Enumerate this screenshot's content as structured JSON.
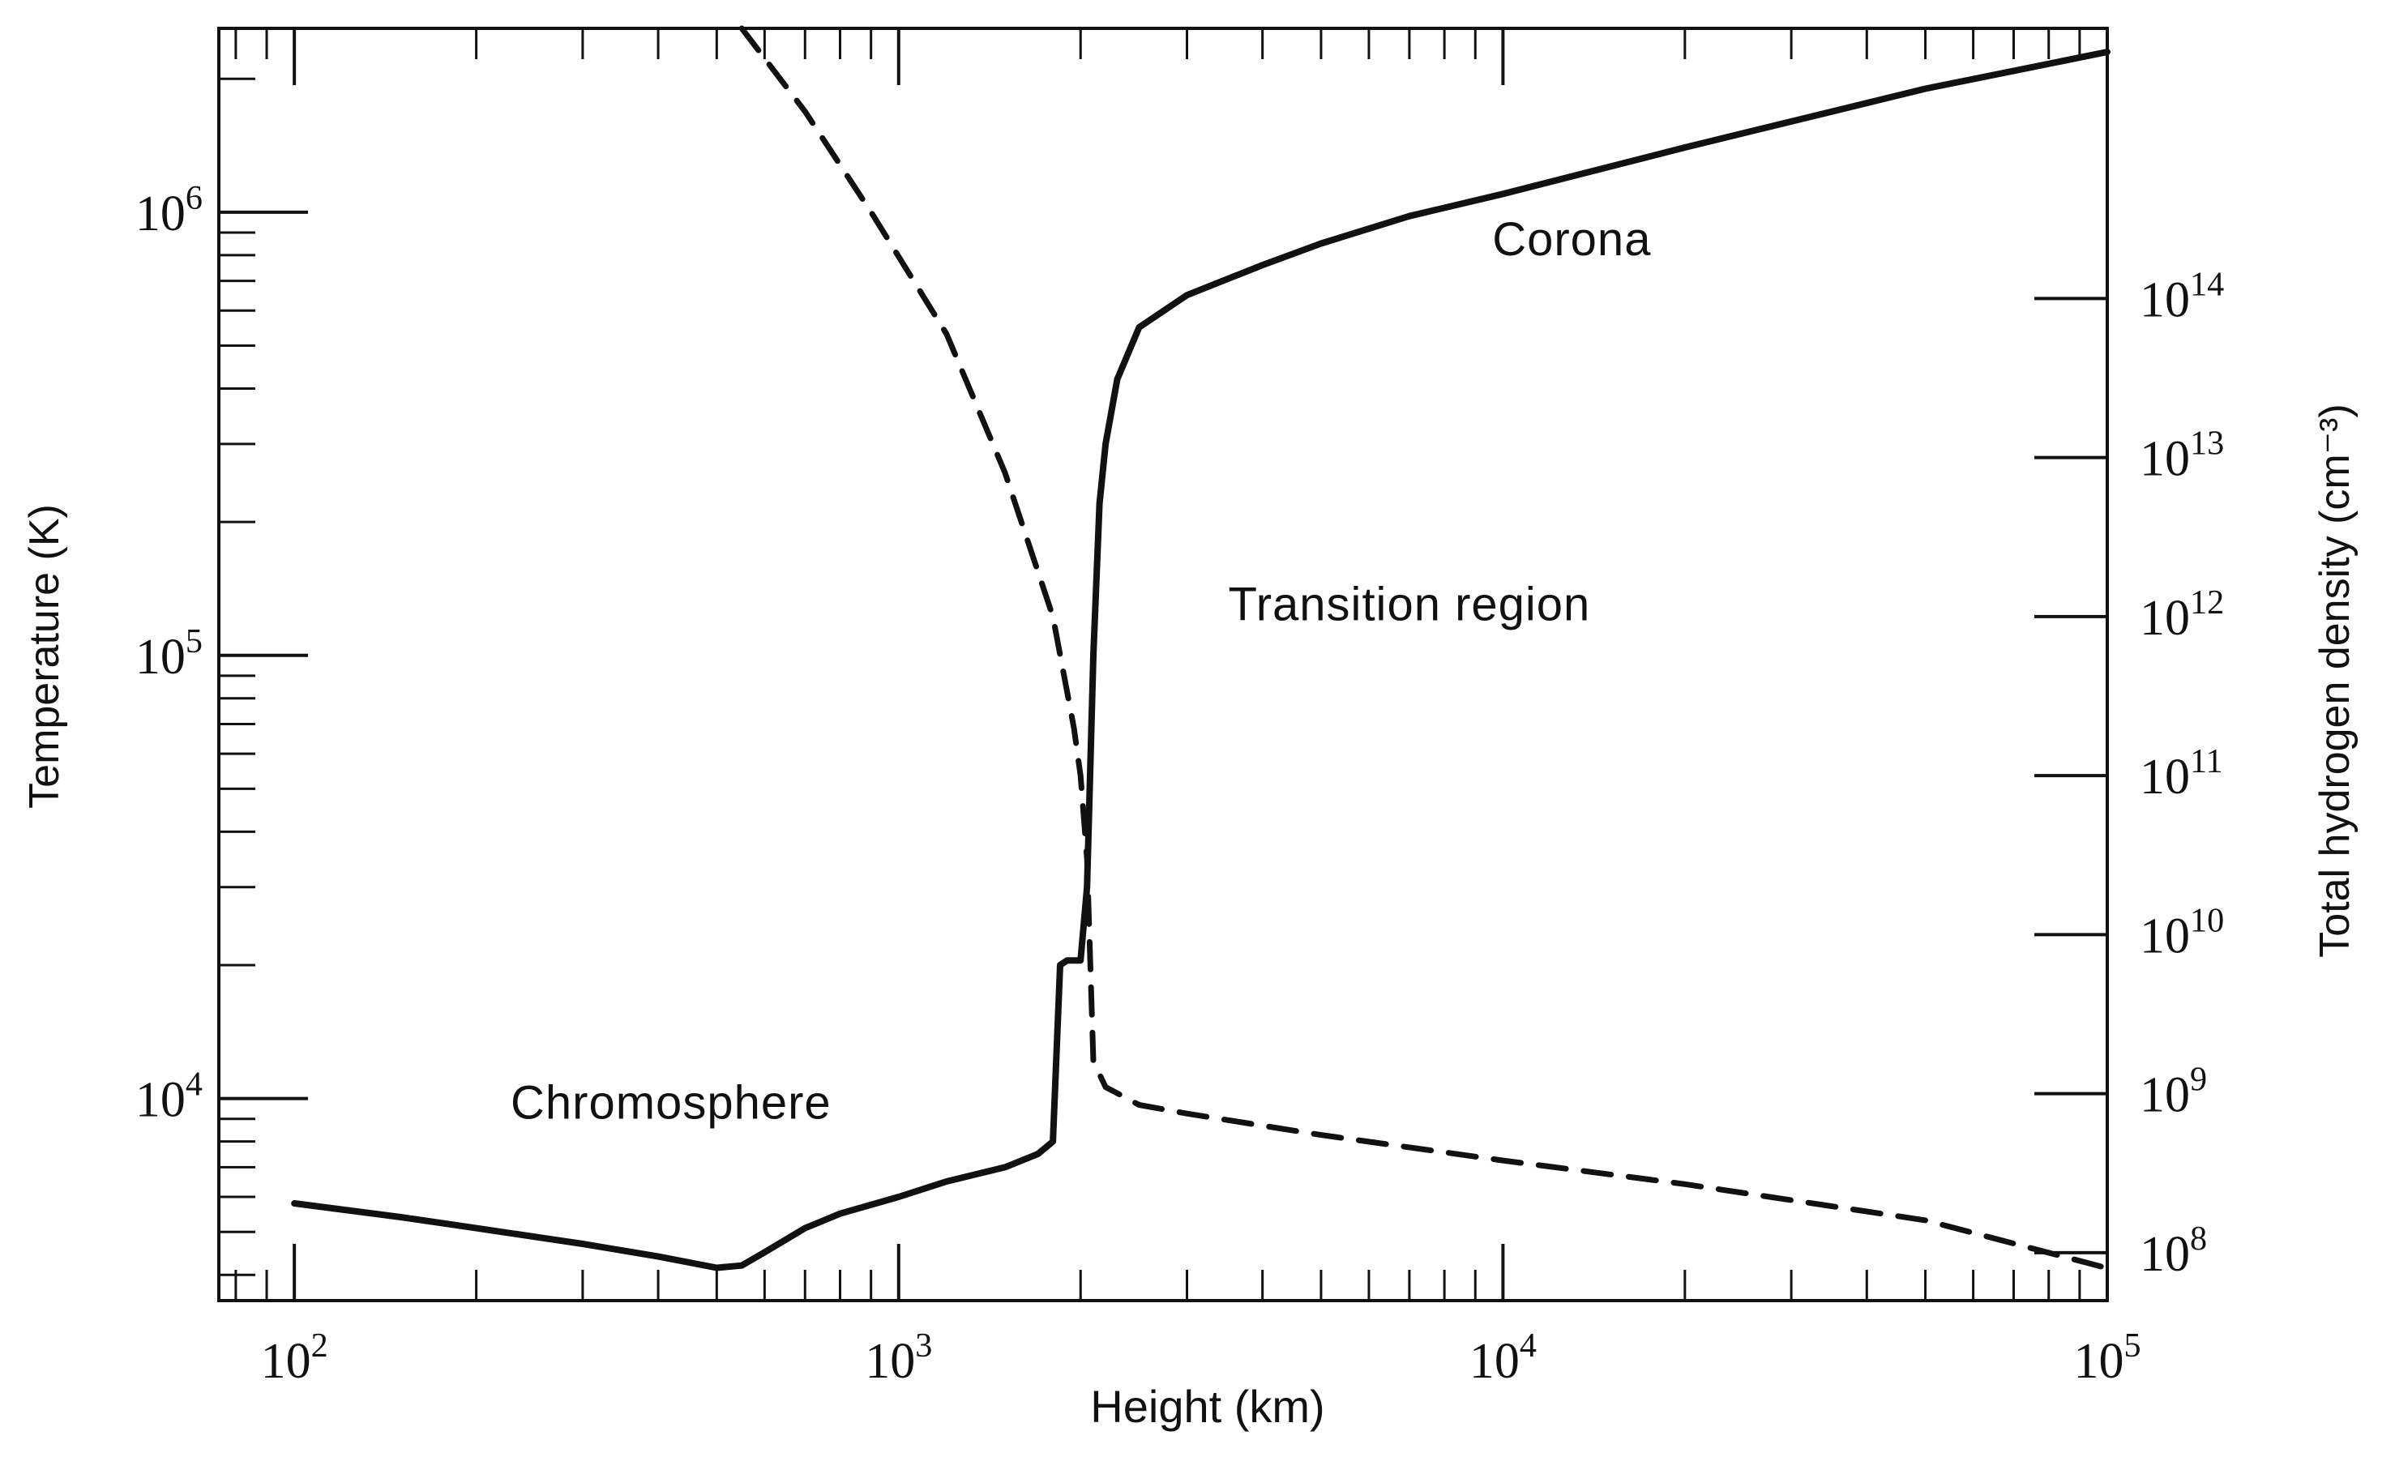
{
  "chart_data": {
    "type": "line",
    "title": "",
    "xlabel": "Height (km)",
    "ylabel": "Temperature (K)",
    "y2label": "Total hydrogen density (cm⁻³)",
    "xscale": "log",
    "yscale": "log",
    "y2scale": "log",
    "xlim": [
      75,
      100000
    ],
    "ylim": [
      3500,
      2600000
    ],
    "y2lim": [
      50000000,
      5000000000000000
    ],
    "grid": false,
    "legend": "none",
    "x_ticks": [
      {
        "base": "10",
        "exp": "2"
      },
      {
        "base": "10",
        "exp": "3"
      },
      {
        "base": "10",
        "exp": "4"
      },
      {
        "base": "10",
        "exp": "5"
      }
    ],
    "y_ticks": [
      {
        "base": "10",
        "exp": "4"
      },
      {
        "base": "10",
        "exp": "5"
      },
      {
        "base": "10",
        "exp": "6"
      }
    ],
    "y2_ticks": [
      {
        "base": "10",
        "exp": "8"
      },
      {
        "base": "10",
        "exp": "9"
      },
      {
        "base": "10",
        "exp": "10"
      },
      {
        "base": "10",
        "exp": "11"
      },
      {
        "base": "10",
        "exp": "12"
      },
      {
        "base": "10",
        "exp": "13"
      },
      {
        "base": "10",
        "exp": "14"
      }
    ],
    "annotations": [
      {
        "text": "Chromosphere",
        "x": 420,
        "y": 9000
      },
      {
        "text": "Transition region",
        "x": 7000,
        "y": 120000
      },
      {
        "text": "Corona",
        "x": 13000,
        "y": 800000
      }
    ],
    "series": [
      {
        "axis": "left",
        "style": "solid",
        "x": [
          100,
          150,
          200,
          300,
          400,
          500,
          550,
          600,
          700,
          800,
          1000,
          1200,
          1500,
          1700,
          1800,
          1850,
          1900,
          2000,
          2050,
          2100,
          2150,
          2200,
          2300,
          2500,
          3000,
          4000,
          5000,
          7000,
          10000,
          20000,
          50000,
          100000
        ],
        "y": [
          5800,
          5400,
          5100,
          4700,
          4400,
          4150,
          4200,
          4500,
          5100,
          5500,
          6000,
          6500,
          7000,
          7500,
          8000,
          20000,
          20500,
          20500,
          30000,
          100000,
          220000,
          300000,
          420000,
          550000,
          650000,
          760000,
          850000,
          980000,
          1100000,
          1400000,
          1900000,
          2300000
        ]
      },
      {
        "axis": "right",
        "style": "dashed",
        "x": [
          550,
          700,
          900,
          1200,
          1500,
          1800,
          1950,
          2000,
          2050,
          2100,
          2200,
          2500,
          3000,
          5000,
          10000,
          20000,
          50000,
          100000
        ],
        "y": [
          5000000000000000,
          1500000000000000,
          350000000000000,
          60000000000000,
          8000000000000,
          1000000000000,
          200000000000,
          100000000000,
          30000000000,
          1600000000,
          1100000000,
          850000000,
          750000000,
          550000000,
          380000000,
          270000000,
          160000000,
          80000000
        ]
      }
    ]
  }
}
